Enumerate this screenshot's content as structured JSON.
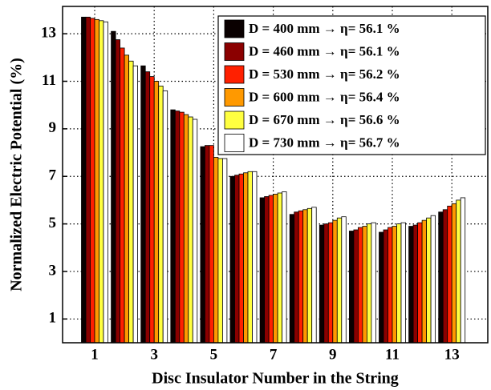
{
  "chart_data": {
    "type": "bar",
    "xlabel": "Disc Insulator Number in the String",
    "ylabel": "Normalized Electric Potential (%)",
    "categories": [
      "1",
      null,
      "3",
      null,
      "5",
      null,
      "7",
      null,
      "9",
      null,
      "11",
      null,
      "13"
    ],
    "series": [
      {
        "name": "D = 400 mm  →  η= 56.1 %",
        "color": "#0a0000",
        "values": [
          13.7,
          13.1,
          11.65,
          9.8,
          8.25,
          7.0,
          6.1,
          5.4,
          4.95,
          4.7,
          4.65,
          4.9,
          5.5
        ]
      },
      {
        "name": "D = 460 mm  →  η= 56.1 %",
        "color": "#8b0000",
        "values": [
          13.7,
          12.75,
          11.4,
          9.75,
          8.3,
          7.05,
          6.15,
          5.5,
          5.0,
          4.75,
          4.75,
          4.95,
          5.6
        ]
      },
      {
        "name": "D = 530 mm  →  η= 56.2 %",
        "color": "#ff2000",
        "values": [
          13.65,
          12.4,
          11.2,
          9.7,
          8.3,
          7.1,
          6.2,
          5.55,
          5.05,
          4.85,
          4.85,
          5.05,
          5.75
        ]
      },
      {
        "name": "D = 600 mm  →  η= 56.4 %",
        "color": "#ff9900",
        "values": [
          13.6,
          12.1,
          11.0,
          9.6,
          7.8,
          7.15,
          6.25,
          5.6,
          5.15,
          4.9,
          4.9,
          5.15,
          5.85
        ]
      },
      {
        "name": "D = 670 mm  →  η= 56.6 %",
        "color": "#ffff40",
        "values": [
          13.55,
          11.85,
          10.8,
          9.5,
          7.75,
          7.2,
          6.3,
          5.65,
          5.25,
          5.0,
          5.0,
          5.25,
          6.0
        ]
      },
      {
        "name": "D = 730 mm  →  η= 56.7 %",
        "color": "#ffffff",
        "values": [
          13.5,
          11.65,
          10.6,
          9.4,
          7.75,
          7.2,
          6.35,
          5.7,
          5.3,
          5.05,
          5.05,
          5.35,
          6.1
        ]
      }
    ],
    "ylim": [
      0,
      14.15
    ],
    "yticks": [
      1,
      3,
      5,
      7,
      9,
      11,
      13
    ],
    "grid": true,
    "legend": "upper right"
  }
}
